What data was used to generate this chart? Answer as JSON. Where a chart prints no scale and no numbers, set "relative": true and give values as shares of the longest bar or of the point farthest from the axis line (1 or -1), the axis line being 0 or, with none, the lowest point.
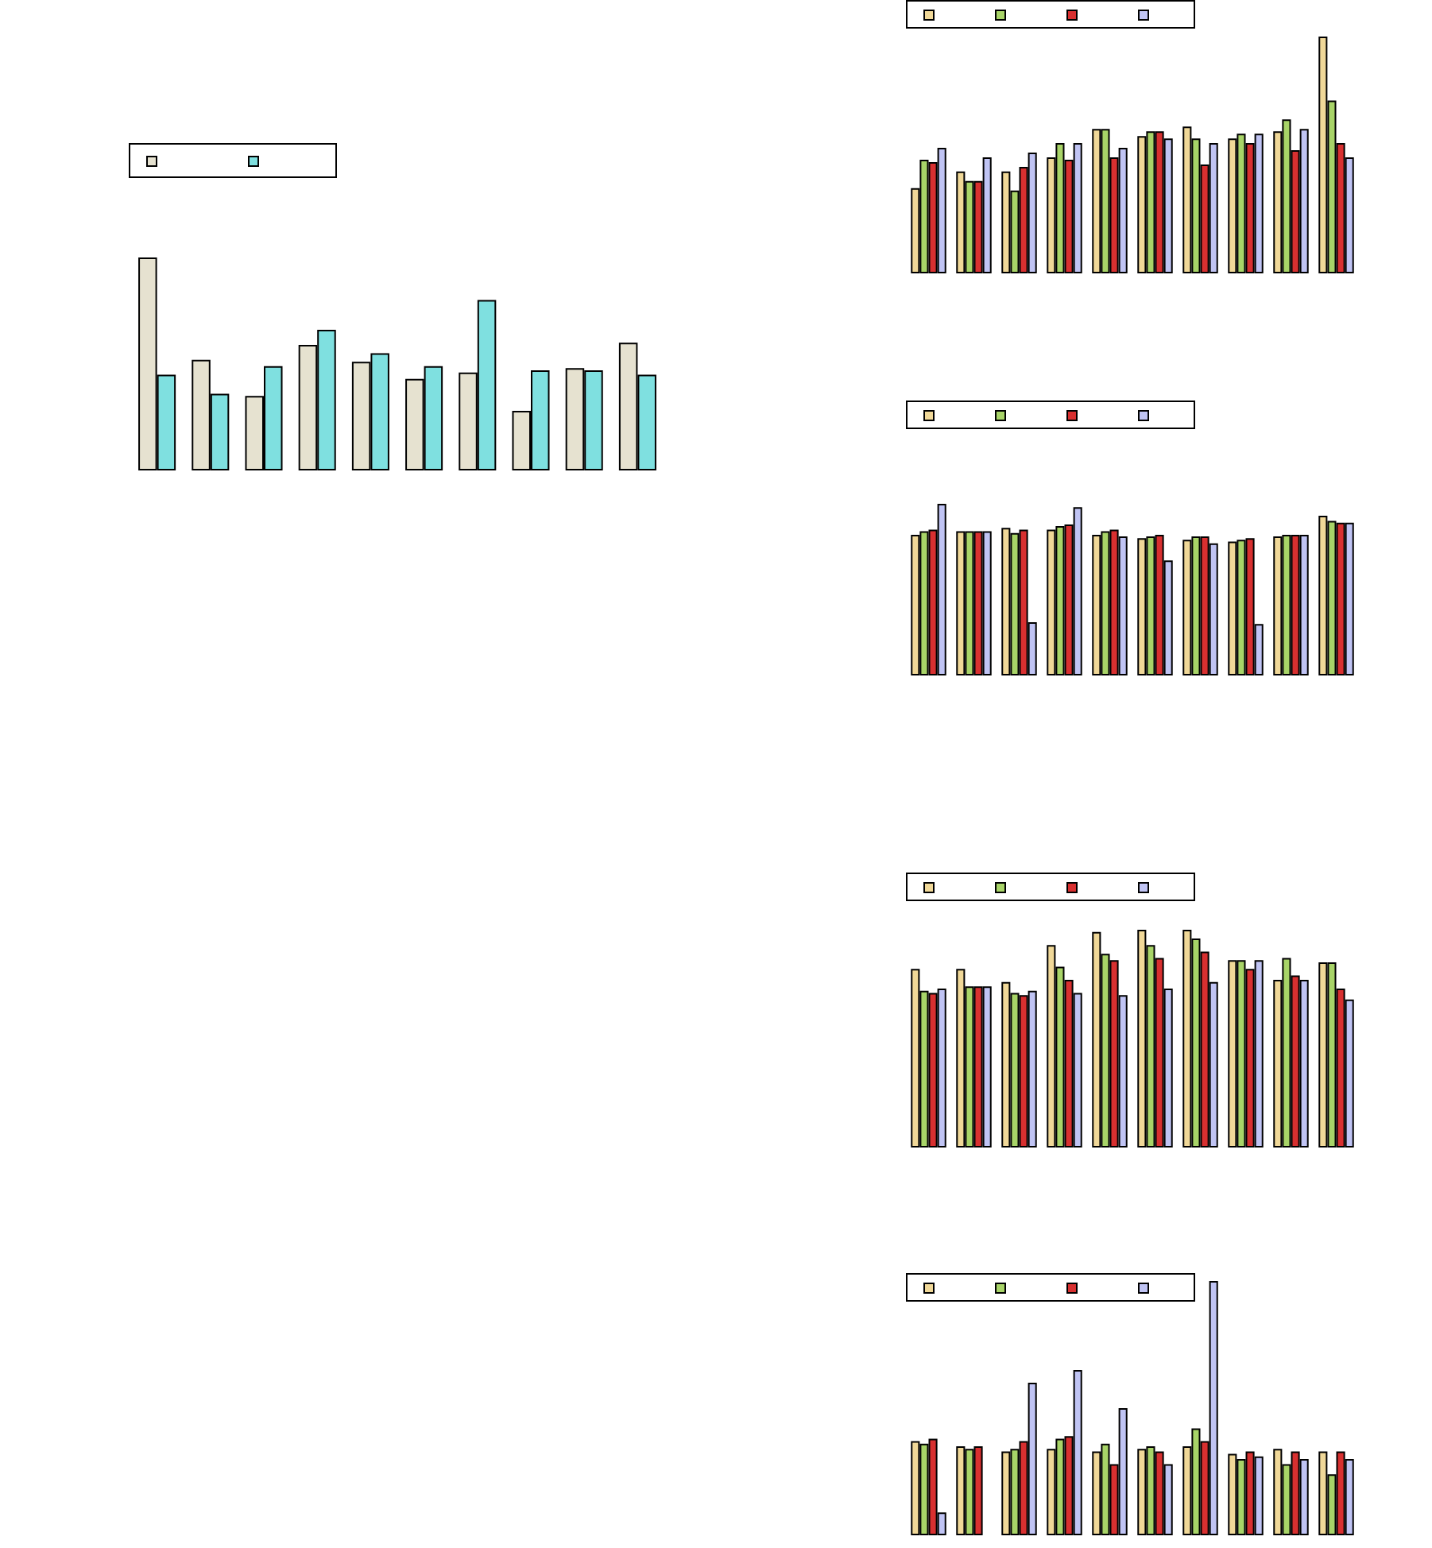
{
  "chart_data": [
    {
      "type": "bar",
      "relative": true,
      "categories": [
        null,
        null,
        null,
        null,
        null,
        null,
        null,
        null,
        null,
        null
      ],
      "series": [
        {
          "color": "#e6e2d0",
          "values": [
            1.0,
            0.52,
            0.35,
            0.59,
            0.51,
            0.43,
            0.46,
            0.28,
            0.48,
            0.6
          ]
        },
        {
          "color": "#7fe0e0",
          "values": [
            0.45,
            0.36,
            0.49,
            0.66,
            0.55,
            0.49,
            0.8,
            0.47,
            0.47,
            0.45
          ]
        }
      ]
    },
    {
      "type": "bar",
      "relative": true,
      "categories": [
        null,
        null,
        null,
        null,
        null,
        null,
        null,
        null,
        null,
        null
      ],
      "series": [
        {
          "color": "#f0d898",
          "values": [
            0.36,
            0.43,
            0.43,
            0.49,
            0.61,
            0.58,
            0.62,
            0.57,
            0.6,
            1.0
          ]
        },
        {
          "color": "#a8d468",
          "values": [
            0.48,
            0.39,
            0.35,
            0.55,
            0.61,
            0.6,
            0.57,
            0.59,
            0.65,
            0.73
          ]
        },
        {
          "color": "#d83030",
          "values": [
            0.47,
            0.39,
            0.45,
            0.48,
            0.49,
            0.6,
            0.46,
            0.55,
            0.52,
            0.55
          ]
        },
        {
          "color": "#c0c4f4",
          "values": [
            0.53,
            0.49,
            0.51,
            0.55,
            0.53,
            0.57,
            0.55,
            0.59,
            0.61,
            0.49
          ]
        }
      ]
    },
    {
      "type": "bar",
      "relative": true,
      "categories": [
        null,
        null,
        null,
        null,
        null,
        null,
        null,
        null,
        null,
        null
      ],
      "series": [
        {
          "color": "#f0d898",
          "values": [
            0.82,
            0.84,
            0.86,
            0.85,
            0.82,
            0.8,
            0.79,
            0.78,
            0.81,
            0.93
          ]
        },
        {
          "color": "#a8d468",
          "values": [
            0.84,
            0.84,
            0.83,
            0.87,
            0.84,
            0.81,
            0.81,
            0.79,
            0.82,
            0.9
          ]
        },
        {
          "color": "#d83030",
          "values": [
            0.85,
            0.84,
            0.85,
            0.88,
            0.85,
            0.82,
            0.81,
            0.8,
            0.82,
            0.89
          ]
        },
        {
          "color": "#c0c4f4",
          "values": [
            1.0,
            0.84,
            0.31,
            0.98,
            0.81,
            0.67,
            0.77,
            0.3,
            0.82,
            0.89
          ]
        }
      ]
    },
    {
      "type": "bar",
      "relative": true,
      "categories": [
        null,
        null,
        null,
        null,
        null,
        null,
        null,
        null,
        null,
        null
      ],
      "series": [
        {
          "color": "#f0d898",
          "values": [
            0.82,
            0.82,
            0.76,
            0.93,
            0.99,
            1.0,
            1.0,
            0.86,
            0.77,
            0.85
          ]
        },
        {
          "color": "#a8d468",
          "values": [
            0.72,
            0.74,
            0.71,
            0.83,
            0.89,
            0.93,
            0.96,
            0.86,
            0.87,
            0.85
          ]
        },
        {
          "color": "#d83030",
          "values": [
            0.71,
            0.74,
            0.7,
            0.77,
            0.86,
            0.87,
            0.9,
            0.82,
            0.79,
            0.73
          ]
        },
        {
          "color": "#c0c4f4",
          "values": [
            0.73,
            0.74,
            0.72,
            0.71,
            0.7,
            0.73,
            0.76,
            0.86,
            0.77,
            0.68
          ]
        }
      ]
    },
    {
      "type": "bar",
      "relative": true,
      "categories": [
        null,
        null,
        null,
        null,
        null,
        null,
        null,
        null,
        null,
        null
      ],
      "series": [
        {
          "color": "#f0d898",
          "values": [
            0.37,
            0.35,
            0.33,
            0.34,
            0.33,
            0.34,
            0.35,
            0.32,
            0.34,
            0.33
          ]
        },
        {
          "color": "#a8d468",
          "values": [
            0.36,
            0.34,
            0.34,
            0.38,
            0.36,
            0.35,
            0.42,
            0.3,
            0.28,
            0.24
          ]
        },
        {
          "color": "#d83030",
          "values": [
            0.38,
            0.35,
            0.37,
            0.39,
            0.28,
            0.33,
            0.37,
            0.33,
            0.33,
            0.33
          ]
        },
        {
          "color": "#c0c4f4",
          "values": [
            0.09,
            null,
            0.6,
            0.65,
            0.5,
            0.28,
            1.0,
            0.31,
            0.3,
            0.3
          ]
        }
      ]
    }
  ]
}
